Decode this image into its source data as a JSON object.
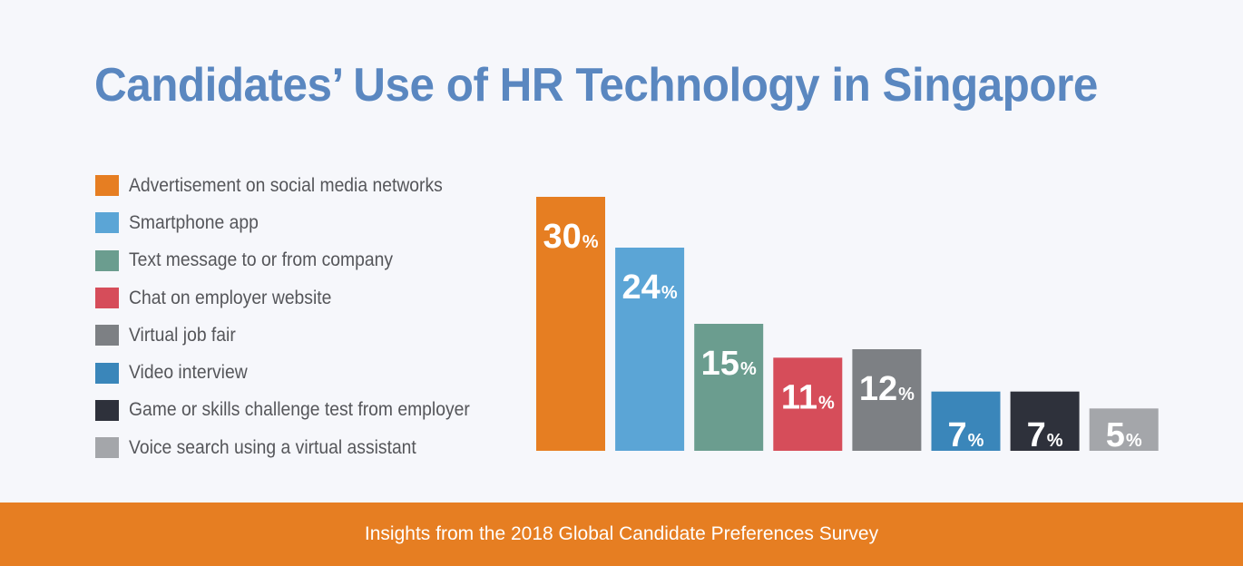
{
  "title": "Candidates’ Use of HR Technology in Singapore",
  "footer": "Insights from the 2018 Global Candidate Preferences Survey",
  "chart_data": {
    "type": "bar",
    "categories": [
      "Advertisement on social media networks",
      "Smartphone app",
      "Text message to or from company",
      "Chat on employer website",
      "Virtual job fair",
      "Video interview",
      "Game or skills challenge test from employer",
      "Voice search using a virtual assistant"
    ],
    "values": [
      30,
      24,
      15,
      11,
      12,
      7,
      7,
      5
    ],
    "unit": "%",
    "colors": [
      "#e67e22",
      "#5ba5d6",
      "#6b9d8f",
      "#d64d5a",
      "#7d8084",
      "#3a86ba",
      "#2e313b",
      "#a4a6aa"
    ],
    "ylim": [
      0,
      30
    ],
    "legend_position": "left"
  }
}
